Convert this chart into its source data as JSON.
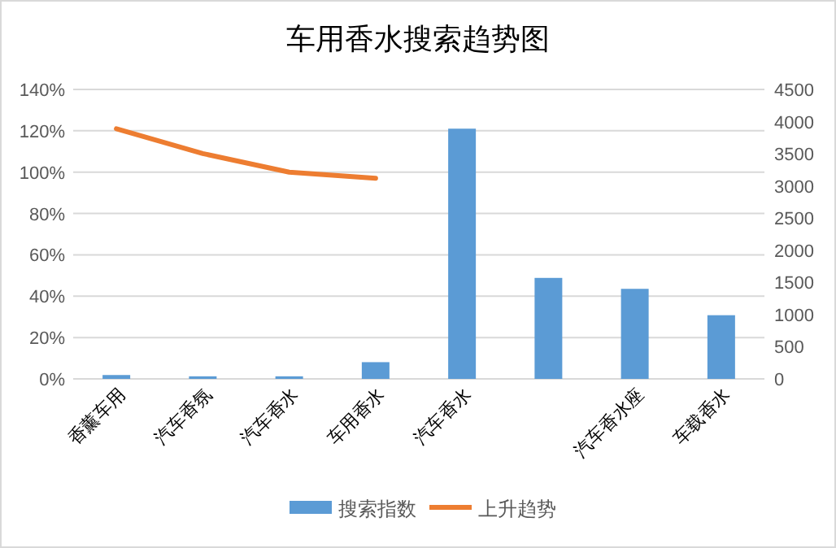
{
  "chart_data": {
    "type": "bar",
    "title": "车用香水搜索趋势图",
    "categories": [
      "香薰车用",
      "汽车香氛",
      "汽车香水",
      "车用香水",
      "汽车香水",
      null,
      "汽车香水座",
      "车载香水"
    ],
    "series": [
      {
        "name": "搜索指数",
        "axis": "y2",
        "color": "#5b9bd5",
        "values": [
          60,
          40,
          40,
          260,
          3890,
          1570,
          1400,
          990
        ]
      },
      {
        "name": "上升趋势",
        "type": "line",
        "axis": "y",
        "color": "#ed7d31",
        "values": [
          1.21,
          1.09,
          1.0,
          0.97,
          null,
          null,
          null,
          null
        ]
      }
    ],
    "ylim": [
      0,
      1.4
    ],
    "yticks": [
      {
        "value": 0,
        "label": "0%"
      },
      {
        "value": 0.2,
        "label": "20%"
      },
      {
        "value": 0.4,
        "label": "40%"
      },
      {
        "value": 0.6,
        "label": "60%"
      },
      {
        "value": 0.8,
        "label": "80%"
      },
      {
        "value": 1.0,
        "label": "100%"
      },
      {
        "value": 1.2,
        "label": "120%"
      },
      {
        "value": 1.4,
        "label": "140%"
      }
    ],
    "y2lim": [
      0,
      4500
    ],
    "y2ticks": [
      0,
      500,
      1000,
      1500,
      2000,
      2500,
      3000,
      3500,
      4000,
      4500
    ],
    "grid": "y",
    "legend": "bottom",
    "marker": "none",
    "line_style": "solid"
  }
}
